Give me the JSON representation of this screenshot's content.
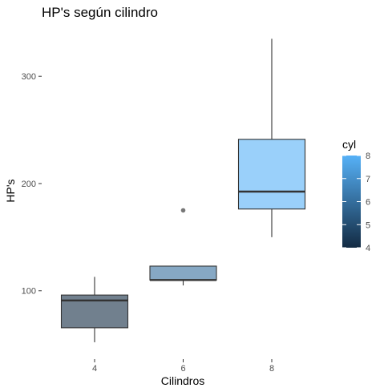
{
  "chart_data": {
    "type": "boxplot",
    "title": "HP's según cilindro",
    "xlabel": "Cilindros",
    "ylabel": "HP's",
    "categories": [
      "4",
      "6",
      "8"
    ],
    "boxes": [
      {
        "category": "4",
        "min": 52,
        "q1": 65.5,
        "median": 91,
        "q3": 96,
        "max": 113,
        "outliers": [],
        "color_value": 4
      },
      {
        "category": "6",
        "min": 105,
        "q1": 110,
        "median": 110,
        "q3": 123,
        "max": 123,
        "outliers": [
          175
        ],
        "color_value": 6
      },
      {
        "category": "8",
        "min": 150,
        "q1": 176.25,
        "median": 192.5,
        "q3": 241.25,
        "max": 335,
        "outliers": [],
        "color_value": 8
      }
    ],
    "y_ticks": [
      100,
      200,
      300
    ],
    "ylim": [
      40,
      345
    ],
    "grid": false,
    "legend": {
      "title": "cyl",
      "position": "right",
      "type": "colorbar",
      "range": [
        4,
        8
      ],
      "ticks": [
        4,
        5,
        6,
        7,
        8
      ],
      "color_low": "#132b43",
      "color_high": "#56b1f7"
    }
  }
}
